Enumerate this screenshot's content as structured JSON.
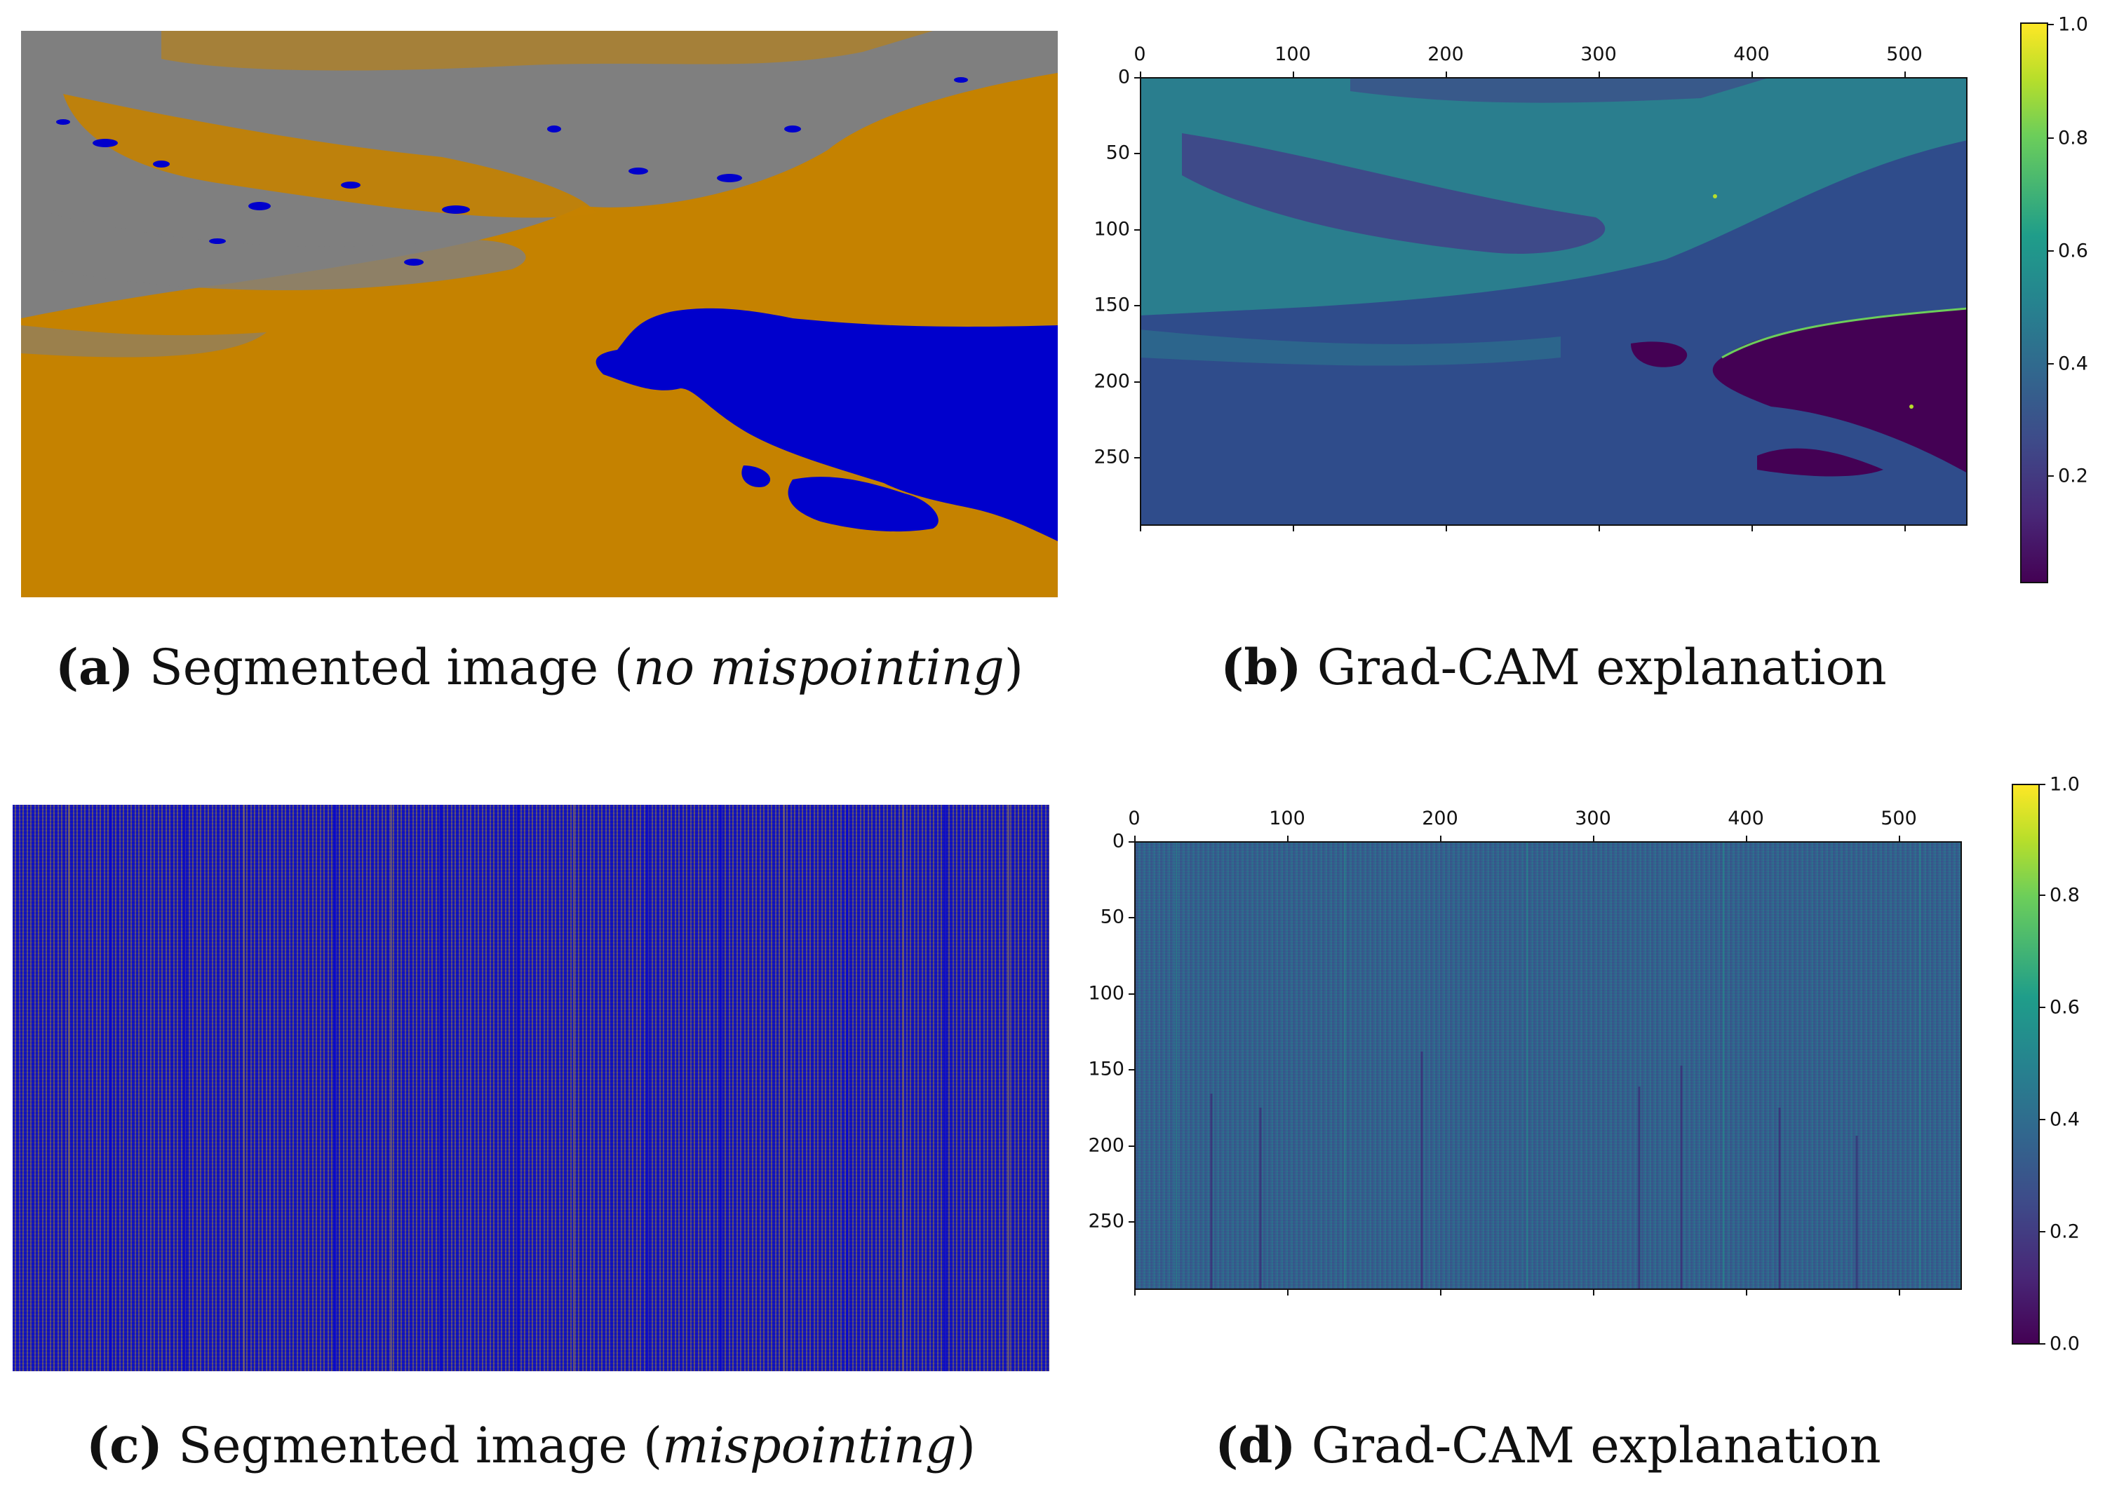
{
  "figure": {
    "panels": [
      {
        "id": "a",
        "caption_label": "(a)",
        "caption_text": "Segmented image (",
        "caption_emph": "no mispointing",
        "caption_tail": ")"
      },
      {
        "id": "b",
        "caption_label": "(b)",
        "caption_text": "Grad-CAM explanation",
        "x_ticks": [
          "0",
          "100",
          "200",
          "300",
          "400",
          "500"
        ],
        "y_ticks": [
          "0",
          "50",
          "100",
          "150",
          "200",
          "250"
        ],
        "colorbar_ticks": [
          "0.2",
          "0.4",
          "0.6",
          "0.8",
          "1.0"
        ]
      },
      {
        "id": "c",
        "caption_label": "(c)",
        "caption_text": "Segmented image (",
        "caption_emph": "mispointing",
        "caption_tail": ")"
      },
      {
        "id": "d",
        "caption_label": "(d)",
        "caption_text": "Grad-CAM explanation",
        "x_ticks": [
          "0",
          "100",
          "200",
          "300",
          "400",
          "500"
        ],
        "y_ticks": [
          "0",
          "50",
          "100",
          "150",
          "200",
          "250"
        ],
        "colorbar_ticks": [
          "0.0",
          "0.2",
          "0.4",
          "0.6",
          "0.8",
          "1.0"
        ]
      }
    ],
    "colors": {
      "land": "#c58200",
      "cloud": "#7f7f7f",
      "water": "#0000cc",
      "viridis_low": "#440154",
      "viridis_mid": "#2c6e8e",
      "viridis_high": "#fde725"
    }
  }
}
